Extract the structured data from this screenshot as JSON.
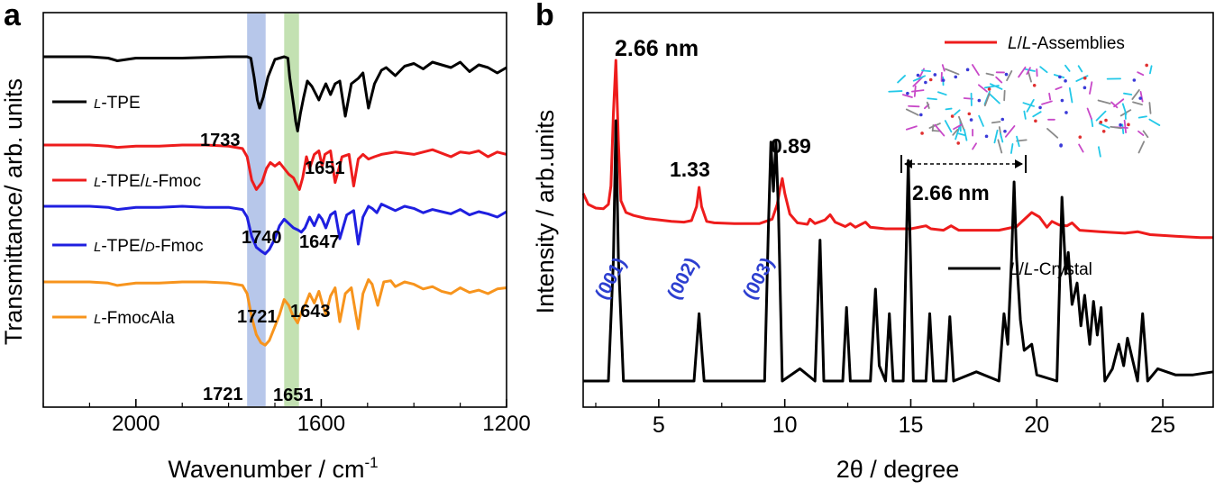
{
  "panel_a": {
    "letter": "a",
    "ylabel": "Transmittance/ arb. units",
    "xlabel_main": "Wavenumber / cm",
    "xlabel_sup": "-1",
    "legend": [
      {
        "prefix": "L",
        "text": "-TPE",
        "color": "#000000"
      },
      {
        "prefix": "L",
        "text": "-TPE/",
        "prefix2": "L",
        "text2": "-Fmoc",
        "color": "#ee1c1c"
      },
      {
        "prefix": "L",
        "text": "-TPE/",
        "prefix2": "D",
        "text2": "-Fmoc",
        "color": "#1f1fe0"
      },
      {
        "prefix": "L",
        "text": "-FmocAla",
        "color": "#f7941d"
      }
    ],
    "peak_labels": [
      "1733",
      "1651",
      "1740",
      "1647",
      "1721",
      "1643",
      "1721",
      "1651"
    ],
    "band_colors": [
      "#aabde6",
      "#b8dca4"
    ]
  },
  "panel_b": {
    "letter": "b",
    "ylabel": "Intensity / arb.units",
    "xlabel": "2θ / degree",
    "legend": [
      {
        "prefix": "L",
        "mid": "/",
        "prefix2": "L",
        "text": "-Assemblies",
        "color": "#ee1c1c"
      },
      {
        "prefix": "L",
        "mid": "/",
        "prefix2": "L",
        "text": "-Crystal",
        "color": "#000000"
      }
    ],
    "peak_labels": [
      "2.66 nm",
      "1.33",
      "0.89"
    ],
    "miller": [
      "(001)",
      "(002)",
      "(003)"
    ],
    "inset_scale": "2.66 nm"
  },
  "chart_data": [
    {
      "type": "line",
      "title": "",
      "xlabel": "Wavenumber / cm-1",
      "ylabel": "Transmittance/ arb. units",
      "xlim": [
        2200,
        1200
      ],
      "xticks": [
        2000,
        1600,
        1200
      ],
      "highlight_bands": [
        [
          1760,
          1720
        ],
        [
          1680,
          1648
        ]
      ],
      "series": [
        {
          "name": "L-TPE",
          "color": "#000000",
          "x": [
            2200,
            2100,
            2060,
            2040,
            2000,
            1900,
            1800,
            1770,
            1760,
            1752,
            1745,
            1738,
            1733,
            1725,
            1715,
            1700,
            1690,
            1680,
            1672,
            1668,
            1660,
            1655,
            1651,
            1645,
            1638,
            1630,
            1620,
            1605,
            1598,
            1590,
            1580,
            1570,
            1560,
            1548,
            1535,
            1520,
            1510,
            1498,
            1485,
            1470,
            1460,
            1440,
            1420,
            1400,
            1380,
            1360,
            1340,
            1320,
            1300,
            1280,
            1260,
            1240,
            1220,
            1200
          ],
          "y": [
            1.0,
            1.0,
            0.99,
            0.97,
            0.99,
            0.99,
            1.0,
            1.0,
            1.0,
            0.99,
            0.85,
            0.68,
            0.62,
            0.7,
            0.85,
            0.98,
            0.99,
            1.0,
            0.99,
            0.85,
            0.65,
            0.52,
            0.45,
            0.58,
            0.7,
            0.82,
            0.78,
            0.68,
            0.74,
            0.8,
            0.72,
            0.8,
            0.82,
            0.56,
            0.8,
            0.84,
            0.88,
            0.62,
            0.8,
            0.9,
            0.92,
            0.86,
            0.93,
            0.95,
            0.91,
            0.96,
            0.94,
            0.92,
            0.96,
            0.89,
            0.94,
            0.92,
            0.88,
            0.92
          ]
        },
        {
          "name": "L-TPE/L-Fmoc",
          "color": "#ee1c1c",
          "x": [
            2200,
            2100,
            2060,
            2040,
            2000,
            1950,
            1900,
            1850,
            1800,
            1770,
            1760,
            1750,
            1740,
            1728,
            1718,
            1710,
            1700,
            1690,
            1680,
            1670,
            1660,
            1655,
            1647,
            1640,
            1632,
            1625,
            1615,
            1605,
            1598,
            1592,
            1580,
            1570,
            1555,
            1540,
            1530,
            1520,
            1510,
            1498,
            1485,
            1470,
            1440,
            1400,
            1360,
            1320,
            1300,
            1280,
            1260,
            1240,
            1220,
            1200
          ],
          "y": [
            1.0,
            1.0,
            0.99,
            0.98,
            0.99,
            0.99,
            1.0,
            1.0,
            0.99,
            0.97,
            0.9,
            0.7,
            0.62,
            0.68,
            0.8,
            0.85,
            0.82,
            0.85,
            0.8,
            0.75,
            0.72,
            0.68,
            0.62,
            0.72,
            0.9,
            0.8,
            0.92,
            0.95,
            0.82,
            0.92,
            0.95,
            0.68,
            0.9,
            0.92,
            0.65,
            0.88,
            0.92,
            0.88,
            0.9,
            0.92,
            0.94,
            0.92,
            0.96,
            0.9,
            0.94,
            0.93,
            0.95,
            0.9,
            0.94,
            0.92
          ]
        },
        {
          "name": "L-TPE/D-Fmoc",
          "color": "#1f1fe0",
          "x": [
            2200,
            2100,
            2060,
            2040,
            2000,
            1950,
            1900,
            1850,
            1800,
            1770,
            1760,
            1750,
            1740,
            1728,
            1721,
            1712,
            1700,
            1690,
            1680,
            1670,
            1660,
            1650,
            1643,
            1635,
            1625,
            1615,
            1605,
            1598,
            1590,
            1580,
            1570,
            1560,
            1545,
            1530,
            1520,
            1510,
            1498,
            1490,
            1480,
            1470,
            1460,
            1440,
            1420,
            1400,
            1380,
            1360,
            1340,
            1320,
            1300,
            1280,
            1260,
            1240,
            1220,
            1200
          ],
          "y": [
            1.0,
            1.0,
            0.99,
            0.97,
            0.99,
            0.99,
            1.0,
            0.99,
            0.99,
            0.97,
            0.9,
            0.72,
            0.62,
            0.58,
            0.56,
            0.6,
            0.7,
            0.82,
            0.88,
            0.84,
            0.8,
            0.78,
            0.76,
            0.8,
            0.9,
            0.82,
            0.92,
            0.88,
            0.8,
            0.92,
            0.95,
            0.7,
            0.92,
            0.96,
            0.65,
            0.9,
            1.0,
            0.98,
            0.94,
            1.02,
            1.0,
            0.96,
            1.0,
            0.98,
            0.94,
            0.97,
            0.95,
            0.93,
            0.97,
            0.92,
            0.95,
            0.93,
            0.9,
            0.95
          ]
        },
        {
          "name": "L-FmocAla",
          "color": "#f7941d",
          "x": [
            2200,
            2100,
            2060,
            2040,
            2000,
            1950,
            1900,
            1850,
            1800,
            1770,
            1760,
            1750,
            1740,
            1730,
            1721,
            1712,
            1700,
            1690,
            1680,
            1670,
            1662,
            1651,
            1642,
            1635,
            1625,
            1615,
            1605,
            1598,
            1590,
            1580,
            1570,
            1560,
            1548,
            1535,
            1520,
            1510,
            1498,
            1490,
            1478,
            1465,
            1450,
            1440,
            1420,
            1400,
            1380,
            1360,
            1340,
            1320,
            1300,
            1280,
            1260,
            1240,
            1220,
            1200
          ],
          "y": [
            1.0,
            1.0,
            0.99,
            0.97,
            0.99,
            0.99,
            1.0,
            1.0,
            0.99,
            0.97,
            0.9,
            0.7,
            0.55,
            0.48,
            0.46,
            0.5,
            0.62,
            0.72,
            0.85,
            0.8,
            0.72,
            0.65,
            0.75,
            0.8,
            0.9,
            0.82,
            0.92,
            0.82,
            0.72,
            0.88,
            0.95,
            0.66,
            0.9,
            0.95,
            0.6,
            0.9,
            1.02,
            0.98,
            0.8,
            1.0,
            1.01,
            0.96,
            1.0,
            0.98,
            0.94,
            0.96,
            0.92,
            0.9,
            0.95,
            0.91,
            0.93,
            0.9,
            0.94,
            0.95
          ]
        }
      ]
    },
    {
      "type": "line",
      "title": "",
      "xlabel": "2θ / degree",
      "ylabel": "Intensity / arb.units",
      "xlim": [
        2,
        27
      ],
      "xticks": [
        5,
        10,
        15,
        20,
        25
      ],
      "series": [
        {
          "name": "L/L-Assemblies",
          "color": "#ee1c1c",
          "x": [
            2.0,
            2.2,
            2.5,
            2.8,
            3.0,
            3.1,
            3.2,
            3.3,
            3.4,
            3.5,
            3.7,
            4.0,
            4.5,
            5.0,
            5.5,
            6.0,
            6.3,
            6.5,
            6.6,
            6.7,
            6.9,
            7.2,
            8.0,
            9.0,
            9.5,
            9.7,
            9.8,
            9.9,
            10.0,
            10.2,
            10.5,
            10.9,
            11.0,
            11.2,
            11.6,
            11.8,
            12.0,
            12.4,
            12.6,
            12.8,
            13.2,
            13.4,
            14.0,
            15.0,
            15.6,
            15.8,
            16.3,
            16.6,
            16.9,
            17.5,
            18.5,
            19.2,
            19.8,
            20.1,
            20.4,
            20.6,
            20.9,
            21.2,
            21.4,
            21.7,
            22.5,
            23.5,
            24.0,
            24.5,
            25.5,
            26.5,
            27.0
          ],
          "y": [
            0.7,
            0.55,
            0.5,
            0.49,
            0.55,
            0.8,
            1.8,
            2.5,
            1.4,
            0.6,
            0.44,
            0.4,
            0.36,
            0.34,
            0.32,
            0.31,
            0.33,
            0.52,
            0.78,
            0.52,
            0.32,
            0.3,
            0.29,
            0.29,
            0.35,
            0.55,
            0.74,
            0.9,
            0.7,
            0.42,
            0.3,
            0.28,
            0.35,
            0.29,
            0.34,
            0.41,
            0.31,
            0.25,
            0.29,
            0.24,
            0.31,
            0.24,
            0.22,
            0.22,
            0.26,
            0.22,
            0.2,
            0.26,
            0.2,
            0.2,
            0.2,
            0.25,
            0.44,
            0.38,
            0.24,
            0.32,
            0.27,
            0.26,
            0.3,
            0.2,
            0.18,
            0.16,
            0.18,
            0.14,
            0.12,
            0.1,
            0.1
          ]
        },
        {
          "name": "L/L-Crystal",
          "color": "#000000",
          "x": [
            2.0,
            3.0,
            3.2,
            3.3,
            3.4,
            3.6,
            6.4,
            6.6,
            6.8,
            9.2,
            9.35,
            9.45,
            9.55,
            9.65,
            9.75,
            9.9,
            10.6,
            11.2,
            11.4,
            11.55,
            12.3,
            12.45,
            12.6,
            13.4,
            13.6,
            13.75,
            14.0,
            14.15,
            14.3,
            14.7,
            14.9,
            15.1,
            15.6,
            15.75,
            15.9,
            16.4,
            16.55,
            16.7,
            17.6,
            18.5,
            18.7,
            18.85,
            19.0,
            19.1,
            19.2,
            19.35,
            19.5,
            19.8,
            20.0,
            20.8,
            21.0,
            21.15,
            21.25,
            21.4,
            21.6,
            21.75,
            21.9,
            22.1,
            22.25,
            22.4,
            22.55,
            22.7,
            23.0,
            23.25,
            23.45,
            23.6,
            24.0,
            24.2,
            24.4,
            24.8,
            25.5,
            26.2,
            27.0
          ],
          "y": [
            0.0,
            0.0,
            0.4,
            0.85,
            0.4,
            0.0,
            0.0,
            0.22,
            0.0,
            0.0,
            0.5,
            0.78,
            0.62,
            0.78,
            0.55,
            0.0,
            0.04,
            0.0,
            0.46,
            0.0,
            0.0,
            0.24,
            0.0,
            0.0,
            0.3,
            0.05,
            0.0,
            0.22,
            0.0,
            0.0,
            0.72,
            0.0,
            0.0,
            0.22,
            0.0,
            0.0,
            0.21,
            0.0,
            0.03,
            0.0,
            0.22,
            0.12,
            0.4,
            0.65,
            0.4,
            0.2,
            0.1,
            0.12,
            0.02,
            0.0,
            0.6,
            0.35,
            0.42,
            0.25,
            0.32,
            0.18,
            0.28,
            0.12,
            0.26,
            0.15,
            0.24,
            0.0,
            0.04,
            0.12,
            0.05,
            0.14,
            0.0,
            0.22,
            0.0,
            0.04,
            0.02,
            0.02,
            0.03
          ]
        }
      ]
    }
  ]
}
